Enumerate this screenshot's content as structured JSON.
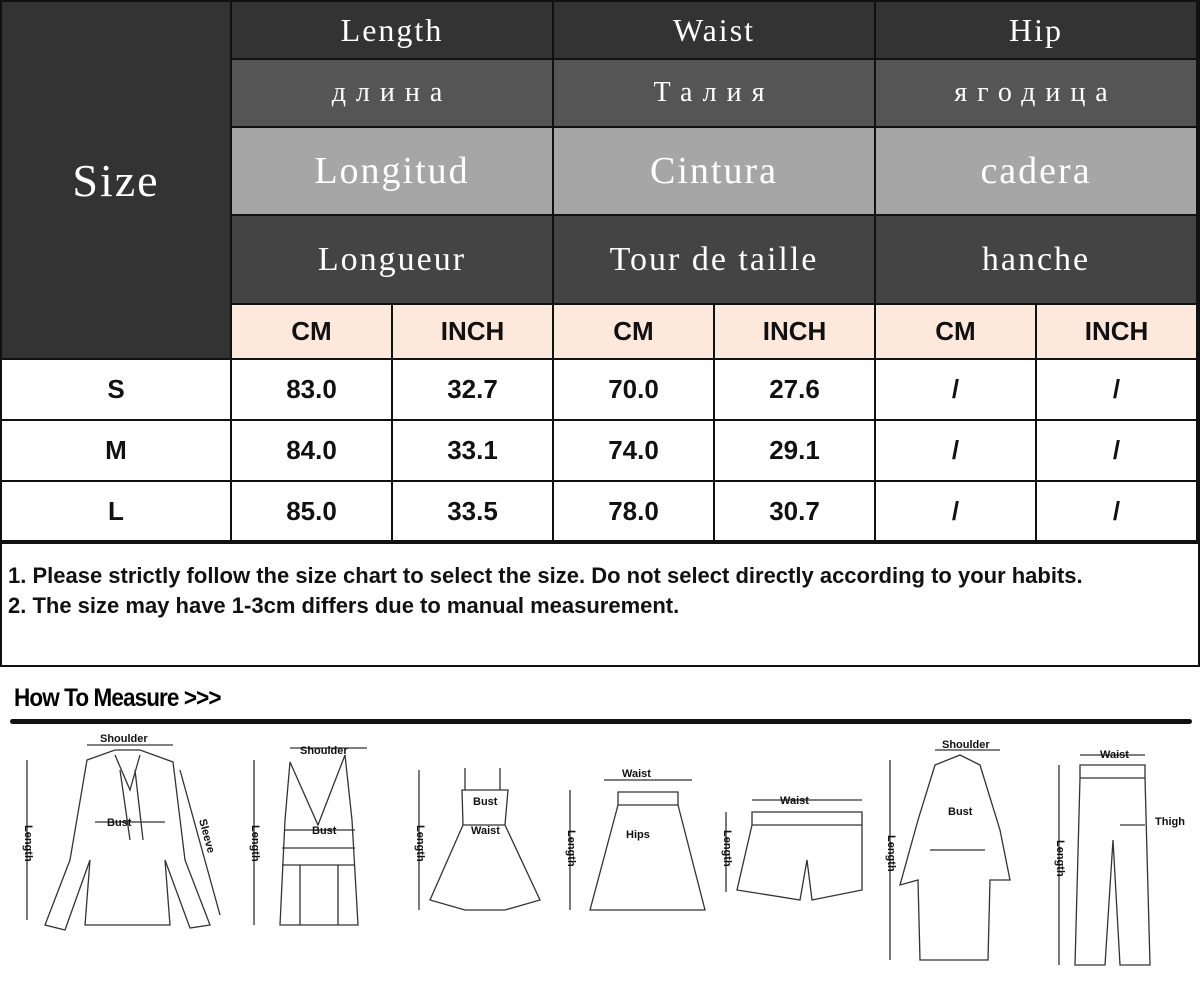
{
  "table": {
    "size_header": "Size",
    "groups": [
      {
        "en": "Length",
        "ru": "длина",
        "es": "Longitud",
        "fr": "Longueur"
      },
      {
        "en": "Waist",
        "ru": "Талия",
        "es": "Cintura",
        "fr": "Tour de taille"
      },
      {
        "en": "Hip",
        "ru": "ягодица",
        "es": "cadera",
        "fr": "hanche"
      }
    ],
    "units": [
      "CM",
      "INCH",
      "CM",
      "INCH",
      "CM",
      "INCH"
    ],
    "rows": [
      {
        "size": "S",
        "values": [
          "83.0",
          "32.7",
          "70.0",
          "27.6",
          "/",
          "/"
        ]
      },
      {
        "size": "M",
        "values": [
          "84.0",
          "33.1",
          "74.0",
          "29.1",
          "/",
          "/"
        ]
      },
      {
        "size": "L",
        "values": [
          "85.0",
          "33.5",
          "78.0",
          "30.7",
          "/",
          "/"
        ]
      }
    ]
  },
  "notes": [
    "1. Please strictly follow the size chart to select the size. Do not select directly according to your habits.",
    "2. The size may have 1-3cm differs due to manual measurement."
  ],
  "how_to_measure": {
    "title": "How To Measure >>>",
    "labels": {
      "shoulder": "Shoulder",
      "bust": "Bust",
      "sleeve": "Sleeve",
      "length": "Length",
      "waist": "Waist",
      "hips": "Hips",
      "thigh": "Thigh"
    }
  },
  "colors": {
    "header_dark": "#333333",
    "header_mid": "#555555",
    "header_light": "#a6a6a6",
    "unit_row": "#fde9dc"
  }
}
